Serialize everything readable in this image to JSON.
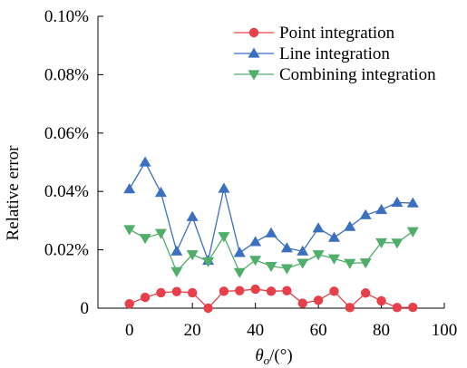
{
  "chart_data": {
    "type": "line",
    "xlabel_symbol": "θ",
    "xlabel_subscript": "o",
    "xlabel_unit": "/(°)",
    "ylabel": "Relative error",
    "xlim": [
      -10,
      100
    ],
    "ylim": [
      0,
      0.1
    ],
    "xticks": [
      0,
      20,
      40,
      60,
      80,
      100
    ],
    "xtick_labels": [
      "0",
      "20",
      "40",
      "60",
      "80",
      "100"
    ],
    "yticks": [
      0,
      0.02,
      0.04,
      0.06,
      0.08,
      0.1
    ],
    "ytick_labels": [
      "0",
      "0.02%",
      "0.04%",
      "0.06%",
      "0.08%",
      "0.10%"
    ],
    "grid": false,
    "legend_position": "top-right",
    "x": [
      0,
      5,
      10,
      15,
      20,
      25,
      30,
      35,
      40,
      45,
      50,
      55,
      60,
      65,
      70,
      75,
      80,
      85,
      90
    ],
    "series": [
      {
        "name": "Point integration",
        "marker": "circle",
        "color": "#e8404a",
        "values": [
          0.0015,
          0.0037,
          0.0053,
          0.0057,
          0.0053,
          0.0,
          0.0058,
          0.006,
          0.0065,
          0.0058,
          0.006,
          0.0017,
          0.0027,
          0.0058,
          0.0002,
          0.0052,
          0.0025,
          0.0002,
          0.0003
        ]
      },
      {
        "name": "Line integration",
        "marker": "triangle-up",
        "color": "#3b6fbf",
        "values": [
          0.0408,
          0.05,
          0.0396,
          0.0195,
          0.0313,
          0.0163,
          0.041,
          0.019,
          0.0227,
          0.0257,
          0.0206,
          0.0195,
          0.0274,
          0.0242,
          0.0279,
          0.0319,
          0.0337,
          0.0362,
          0.036
        ]
      },
      {
        "name": "Combining integration",
        "marker": "triangle-down",
        "color": "#4fae6a",
        "values": [
          0.027,
          0.024,
          0.0257,
          0.0126,
          0.0184,
          0.016,
          0.0246,
          0.0123,
          0.0165,
          0.0144,
          0.0136,
          0.0155,
          0.0184,
          0.017,
          0.0154,
          0.0156,
          0.0225,
          0.0224,
          0.0263
        ]
      }
    ]
  }
}
